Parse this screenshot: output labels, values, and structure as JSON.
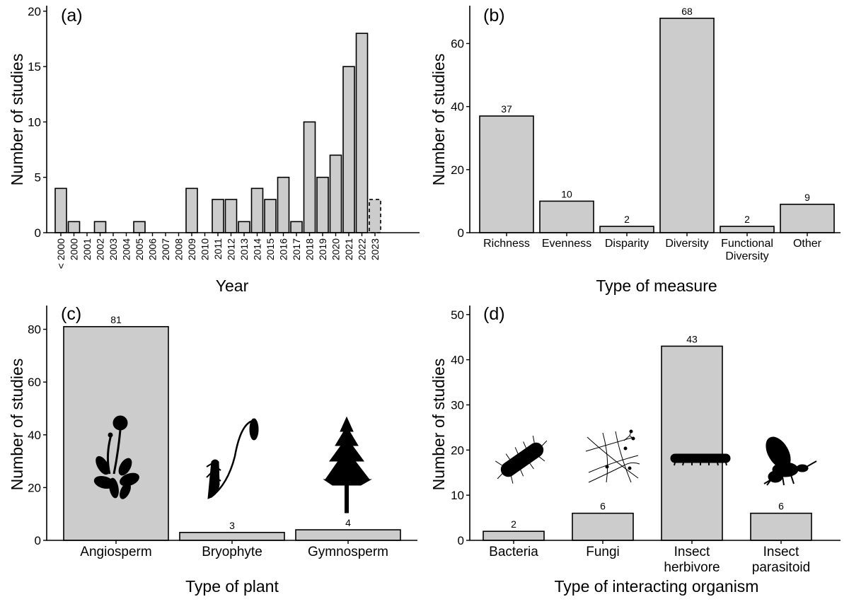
{
  "chart_data": [
    {
      "type": "bar",
      "panel_label": "(a)",
      "xlabel": "Year",
      "ylabel": "Number of studies",
      "ylim": [
        0,
        20.5
      ],
      "yticks": [
        0,
        5,
        10,
        15,
        20
      ],
      "categories": [
        "< 2000",
        "2000",
        "2001",
        "2002",
        "2003",
        "2004",
        "2005",
        "2006",
        "2007",
        "2008",
        "2009",
        "2010",
        "2011",
        "2012",
        "2013",
        "2014",
        "2015",
        "2016",
        "2017",
        "2018",
        "2019",
        "2020",
        "2021",
        "2022",
        "2023"
      ],
      "values": [
        4,
        1,
        0,
        1,
        0,
        0,
        1,
        0,
        0,
        0,
        4,
        0,
        3,
        3,
        1,
        4,
        3,
        5,
        1,
        10,
        5,
        7,
        15,
        18,
        3
      ],
      "dashed_categories": [
        "2023"
      ]
    },
    {
      "type": "bar",
      "panel_label": "(b)",
      "xlabel": "Type of measure",
      "ylabel": "Number of studies",
      "ylim": [
        0,
        72
      ],
      "yticks": [
        0,
        20,
        40,
        60
      ],
      "categories": [
        "Richness",
        "Evenness",
        "Disparity",
        "Diversity",
        "Functional Diversity",
        "Other"
      ],
      "values": [
        37,
        10,
        2,
        68,
        2,
        9
      ],
      "data_labels": [
        "37",
        "10",
        "2",
        "68",
        "2",
        "9"
      ]
    },
    {
      "type": "bar",
      "panel_label": "(c)",
      "xlabel": "Type of plant",
      "ylabel": "Number of studies",
      "ylim": [
        0,
        89
      ],
      "yticks": [
        0,
        20,
        40,
        60,
        80
      ],
      "categories": [
        "Angiosperm",
        "Bryophyte",
        "Gymnosperm"
      ],
      "values": [
        81,
        3,
        4
      ],
      "data_labels": [
        "81",
        "3",
        "4"
      ],
      "icons": [
        "flower-icon",
        "moss-icon",
        "pine-tree-icon"
      ]
    },
    {
      "type": "bar",
      "panel_label": "(d)",
      "xlabel": "Type of interacting organism",
      "ylabel": "Number of studies",
      "ylim": [
        0,
        52
      ],
      "yticks": [
        0,
        10,
        20,
        30,
        40,
        50
      ],
      "categories": [
        "Bacteria",
        "Fungi",
        "Insect herbivore",
        "Insect parasitoid"
      ],
      "values": [
        2,
        6,
        43,
        6
      ],
      "data_labels": [
        "2",
        "6",
        "43",
        "6"
      ],
      "icons": [
        "bacterium-icon",
        "fungal-hyphae-icon",
        "caterpillar-icon",
        "wasp-icon"
      ]
    }
  ],
  "colors": {
    "bar_fill": "#cccccc",
    "bar_stroke": "#000000",
    "background": "#ffffff"
  }
}
